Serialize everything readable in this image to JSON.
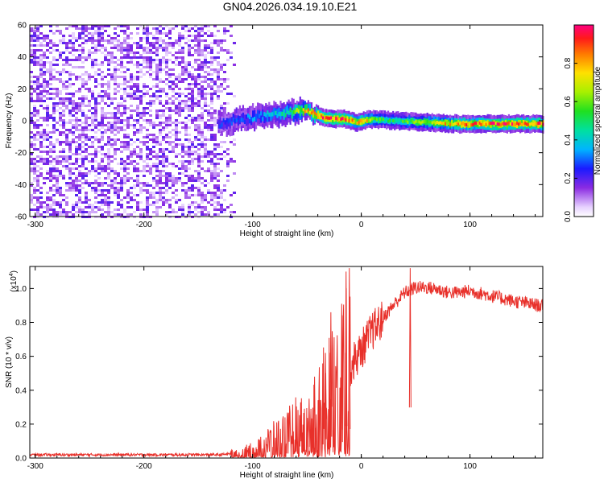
{
  "figure_title": "GN04.2026.034.19.10.E21",
  "chart_data": [
    {
      "type": "heatmap",
      "title": "GN04.2026.034.19.10.E21",
      "xlabel": "Height of straight line (km)",
      "ylabel": "Frequency (Hz)",
      "xlim": [
        -305,
        167
      ],
      "ylim": [
        -60,
        60
      ],
      "xticks": [
        -300,
        -200,
        -100,
        0,
        100
      ],
      "yticks": [
        -60,
        -40,
        -20,
        0,
        20,
        40,
        60
      ],
      "xtick_labels": [
        "-300",
        "-200",
        "-100",
        "0",
        "100"
      ],
      "ytick_labels": [
        "-60",
        "-40",
        "-20",
        "0",
        "20",
        "40",
        "60"
      ],
      "noise_region_x": [
        -305,
        -118
      ],
      "ridge": {
        "x": [
          -132,
          -110,
          -90,
          -70,
          -60,
          -52,
          -45,
          -35,
          -25,
          -15,
          -5,
          0,
          10,
          30,
          60,
          90,
          120,
          167
        ],
        "freq": [
          -2,
          1,
          3,
          5,
          6,
          7,
          4,
          2,
          1,
          1,
          -1,
          0,
          1,
          0,
          -1,
          -2,
          -2,
          -2
        ],
        "amplitude": [
          0.25,
          0.3,
          0.35,
          0.45,
          0.6,
          0.75,
          0.85,
          0.95,
          0.9,
          0.95,
          0.7,
          0.9,
          0.6,
          0.5,
          0.65,
          0.85,
          0.9,
          0.95
        ]
      },
      "colorbar": {
        "label": "Normalized spectral amplitude",
        "range": [
          0,
          1
        ],
        "ticks": [
          0.0,
          0.2,
          0.4,
          0.6,
          0.8
        ],
        "tick_labels": [
          "0.0",
          "0.2",
          "0.4",
          "0.6",
          "0.8"
        ]
      }
    },
    {
      "type": "line",
      "xlabel": "Height of straight line (km)",
      "ylabel": "SNR (10 * v/v)",
      "y_multiplier": "(x10",
      "y_multiplier_exp": "4",
      "y_multiplier_close": ")",
      "xlim": [
        -305,
        167
      ],
      "ylim": [
        0,
        1.13
      ],
      "xticks": [
        -300,
        -200,
        -100,
        0,
        100
      ],
      "yticks": [
        0.0,
        0.2,
        0.4,
        0.6,
        0.8,
        1.0
      ],
      "xtick_labels": [
        "-300",
        "-200",
        "-100",
        "0",
        "100"
      ],
      "ytick_labels": [
        "0.0",
        "0.2",
        "0.4",
        "0.6",
        "0.8",
        "1.0"
      ],
      "color": "#e8302a",
      "series": [
        {
          "name": "SNR",
          "x": [
            -305,
            -200,
            -130,
            -115,
            -100,
            -90,
            -80,
            -70,
            -60,
            -50,
            -40,
            -30,
            -20,
            -15,
            -10,
            -5,
            0,
            10,
            20,
            30,
            40,
            50,
            60,
            70,
            80,
            90,
            100,
            120,
            140,
            167
          ],
          "y": [
            0.02,
            0.02,
            0.02,
            0.03,
            0.05,
            0.08,
            0.12,
            0.15,
            0.2,
            0.2,
            0.3,
            0.4,
            0.5,
            0.65,
            0.55,
            0.6,
            0.65,
            0.76,
            0.83,
            0.91,
            0.98,
            1.01,
            1.01,
            1.0,
            0.98,
            0.98,
            0.99,
            0.96,
            0.93,
            0.9
          ]
        }
      ],
      "peaks": [
        {
          "x": -48,
          "y": 0.35
        },
        {
          "x": -43,
          "y": 0.48
        },
        {
          "x": -33,
          "y": 0.62
        },
        {
          "x": -28,
          "y": 0.86
        },
        {
          "x": -18,
          "y": 0.91
        },
        {
          "x": -14,
          "y": 1.1
        },
        {
          "x": -11,
          "y": 1.12
        },
        {
          "x": 45,
          "y": 1.12
        }
      ]
    }
  ]
}
